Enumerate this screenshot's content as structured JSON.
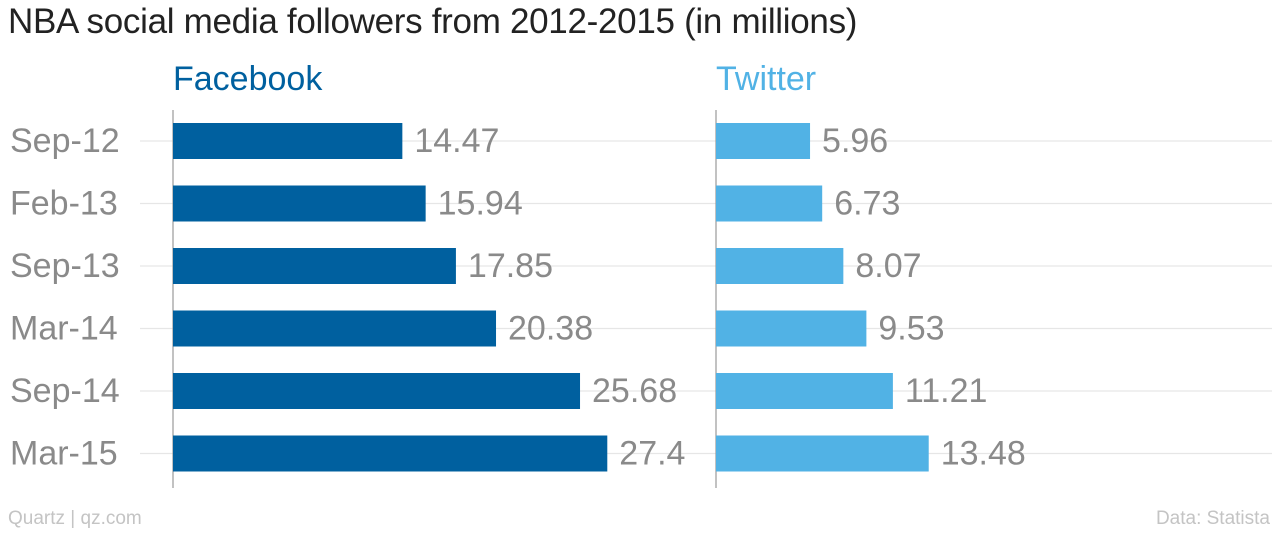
{
  "title": "NBA social media followers from 2012-2015 (in millions)",
  "footer": {
    "source_left": "Quartz | qz.com",
    "source_right": "Data: Statista"
  },
  "chart_data": {
    "type": "bar",
    "orientation": "horizontal",
    "title": "NBA social media followers from 2012-2015 (in millions)",
    "categories": [
      "Sep-12",
      "Feb-13",
      "Sep-13",
      "Mar-14",
      "Sep-14",
      "Mar-15"
    ],
    "series": [
      {
        "name": "Facebook",
        "color": "#00609f",
        "values": [
          14.47,
          15.94,
          17.85,
          20.38,
          25.68,
          27.4
        ]
      },
      {
        "name": "Twitter",
        "color": "#51b2e5",
        "values": [
          5.96,
          6.73,
          8.07,
          9.53,
          11.21,
          13.48
        ]
      }
    ],
    "layout": "small-multiples",
    "grid": true,
    "data_labels": true
  }
}
